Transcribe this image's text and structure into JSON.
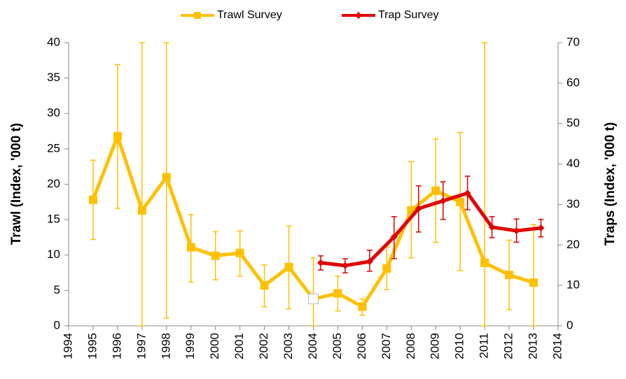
{
  "chart_data": {
    "type": "line",
    "x_label": null,
    "y_label": "Trawl (Index, '000 t)",
    "y2_label": "Traps (Index, '000 t)",
    "xlim": [
      1994,
      2014
    ],
    "xticks": [
      1994,
      1995,
      1996,
      1997,
      1998,
      1999,
      2000,
      2001,
      2002,
      2003,
      2004,
      2005,
      2006,
      2007,
      2008,
      2009,
      2010,
      2011,
      2012,
      2013,
      2014
    ],
    "ylim": [
      0,
      40
    ],
    "yticks": [
      0,
      5,
      10,
      15,
      20,
      25,
      30,
      35,
      40
    ],
    "y2lim": [
      0,
      70
    ],
    "y2ticks": [
      0,
      10,
      20,
      30,
      40,
      50,
      60,
      70
    ],
    "legend": "top",
    "series": [
      {
        "name": "Trawl Survey",
        "color": "#ffc000",
        "marker": "square",
        "hollow_markers": [
          2004
        ],
        "x": [
          1995,
          1996,
          1997,
          1998,
          1999,
          2000,
          2001,
          2002,
          2003,
          2004,
          2005,
          2006,
          2007,
          2008,
          2009,
          2010,
          2011,
          2012,
          2013
        ],
        "values": [
          17.8,
          26.8,
          16.3,
          21.0,
          11.1,
          9.9,
          10.3,
          5.7,
          8.3,
          3.8,
          4.6,
          2.7,
          8.1,
          16.3,
          19.1,
          17.5,
          8.9,
          7.2,
          6.1
        ],
        "lower": [
          12.2,
          16.6,
          0,
          1.1,
          6.2,
          6.5,
          7.0,
          2.7,
          2.4,
          0,
          2.1,
          1.5,
          5.1,
          9.6,
          11.8,
          7.8,
          0,
          2.3,
          0
        ],
        "upper": [
          23.4,
          36.9,
          40,
          40,
          15.7,
          13.3,
          13.4,
          8.6,
          14.1,
          9.6,
          7.0,
          3.8,
          11.1,
          23.2,
          26.4,
          27.3,
          40,
          12.1,
          14.3
        ]
      },
      {
        "name": "Trap Survey",
        "color": "#e00000",
        "marker": "diamond",
        "axis": "y2",
        "x": [
          2004.3,
          2005.3,
          2006.3,
          2007.3,
          2008.3,
          2009.3,
          2010.3,
          2011.3,
          2012.3,
          2013.3
        ],
        "values": [
          15.6,
          14.9,
          15.9,
          22.0,
          29.0,
          30.9,
          32.8,
          24.4,
          23.5,
          24.2
        ],
        "lower": [
          13.8,
          13.1,
          13.5,
          16.6,
          23.2,
          26.3,
          28.7,
          21.8,
          20.7,
          22.0
        ],
        "upper": [
          17.3,
          16.6,
          18.7,
          27.0,
          34.6,
          35.6,
          37.0,
          27.0,
          26.4,
          26.3
        ]
      }
    ]
  }
}
